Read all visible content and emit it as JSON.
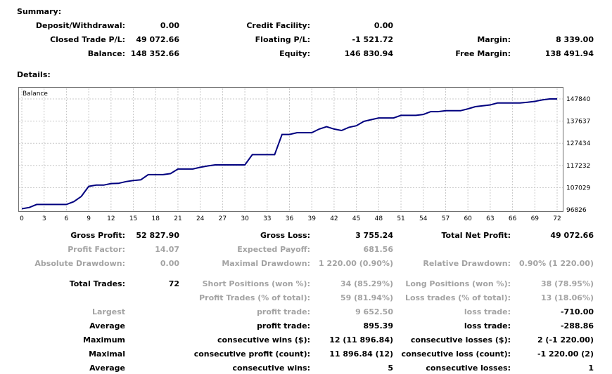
{
  "summary": {
    "heading": "Summary:",
    "deposit_label": "Deposit/Withdrawal:",
    "deposit_value": "0.00",
    "credit_label": "Credit Facility:",
    "credit_value": "0.00",
    "closed_label": "Closed Trade P/L:",
    "closed_value": "49 072.66",
    "floating_label": "Floating P/L:",
    "floating_value": "-1 521.72",
    "margin_label": "Margin:",
    "margin_value": "8 339.00",
    "balance_label": "Balance:",
    "balance_value": "148 352.66",
    "equity_label": "Equity:",
    "equity_value": "146 830.94",
    "free_margin_label": "Free Margin:",
    "free_margin_value": "138 491.94"
  },
  "details": {
    "heading": "Details:"
  },
  "chart_data": {
    "type": "line",
    "title": "Balance",
    "xlabel": "",
    "ylabel": "",
    "grid": true,
    "x_ticks": [
      "0",
      "3",
      "6",
      "9",
      "12",
      "15",
      "18",
      "21",
      "24",
      "27",
      "30",
      "33",
      "36",
      "39",
      "42",
      "45",
      "48",
      "51",
      "54",
      "57",
      "60",
      "63",
      "66",
      "69",
      "72"
    ],
    "y_ticks": [
      "147840",
      "137637",
      "127434",
      "117232",
      "107029",
      "96826"
    ],
    "xlim": [
      0,
      72
    ],
    "ylim": [
      96826,
      147840
    ],
    "series": [
      {
        "color": "#00007f",
        "x": [
          0,
          1,
          2,
          3,
          4,
          5,
          6,
          7,
          8,
          9,
          10,
          11,
          12,
          13,
          14,
          15,
          16,
          17,
          18,
          19,
          20,
          21,
          22,
          23,
          24,
          25,
          26,
          27,
          28,
          29,
          30,
          31,
          32,
          33,
          34,
          35,
          36,
          37,
          38,
          39,
          40,
          41,
          42,
          43,
          44,
          45,
          46,
          47,
          48,
          49,
          50,
          51,
          52,
          53,
          54,
          55,
          56,
          57,
          58,
          59,
          60,
          61,
          62,
          63,
          64,
          65,
          66,
          67,
          68,
          69,
          70,
          71,
          72
        ],
        "y": [
          97300,
          97900,
          99280,
          99280,
          99280,
          99280,
          99280,
          100600,
          103000,
          107600,
          108200,
          108200,
          108900,
          109000,
          109800,
          110300,
          110600,
          113000,
          113000,
          113000,
          113500,
          115600,
          115600,
          115600,
          116400,
          117000,
          117500,
          117500,
          117500,
          117500,
          117500,
          122200,
          122200,
          122200,
          122200,
          131500,
          131500,
          132300,
          132300,
          132300,
          134000,
          135100,
          134000,
          133300,
          134800,
          135500,
          137500,
          138300,
          139100,
          139100,
          139100,
          140300,
          140300,
          140300,
          140700,
          142000,
          142000,
          142400,
          142400,
          142400,
          143300,
          144300,
          144700,
          145100,
          146000,
          146000,
          146000,
          146000,
          146300,
          146700,
          147400,
          147840,
          147840
        ]
      }
    ]
  },
  "stats": {
    "gross_profit_label": "Gross Profit:",
    "gross_profit_value": "52 827.90",
    "gross_loss_label": "Gross Loss:",
    "gross_loss_value": "3 755.24",
    "total_net_profit_label": "Total Net Profit:",
    "total_net_profit_value": "49 072.66",
    "profit_factor_label": "Profit Factor:",
    "profit_factor_value": "14.07",
    "expected_payoff_label": "Expected Payoff:",
    "expected_payoff_value": "681.56",
    "absolute_drawdown_label": "Absolute Drawdown:",
    "absolute_drawdown_value": "0.00",
    "maximal_drawdown_label": "Maximal Drawdown:",
    "maximal_drawdown_value": "1 220.00 (0.90%)",
    "relative_drawdown_label": "Relative Drawdown:",
    "relative_drawdown_value": "0.90% (1 220.00)",
    "total_trades_label": "Total Trades:",
    "total_trades_value": "72",
    "short_positions_label": "Short Positions (won %):",
    "short_positions_value": "34 (85.29%)",
    "long_positions_label": "Long Positions (won %):",
    "long_positions_value": "38 (78.95%)",
    "profit_trades_label": "Profit Trades (% of total):",
    "profit_trades_value": "59 (81.94%)",
    "loss_trades_label": "Loss trades (% of total):",
    "loss_trades_value": "13 (18.06%)",
    "largest_label": "Largest",
    "largest_profit_label": "profit trade:",
    "largest_profit_value": "9 652.50",
    "largest_loss_label": "loss trade:",
    "largest_loss_value": "-710.00",
    "average_label": "Average",
    "average_profit_label": "profit trade:",
    "average_profit_value": "895.39",
    "average_loss_label": "loss trade:",
    "average_loss_value": "-288.86",
    "maximum_label": "Maximum",
    "max_cons_wins_label": "consecutive wins ($):",
    "max_cons_wins_value": "12 (11 896.84)",
    "max_cons_losses_label": "consecutive losses ($):",
    "max_cons_losses_value": "2 (-1 220.00)",
    "maximal_label": "Maximal",
    "maximal_cons_profit_label": "consecutive profit (count):",
    "maximal_cons_profit_value": "11 896.84 (12)",
    "maximal_cons_loss_label": "consecutive loss (count):",
    "maximal_cons_loss_value": "-1 220.00 (2)",
    "average2_label": "Average",
    "avg_cons_wins_label": "consecutive wins:",
    "avg_cons_wins_value": "5",
    "avg_cons_losses_label": "consecutive losses:",
    "avg_cons_losses_value": "1"
  }
}
